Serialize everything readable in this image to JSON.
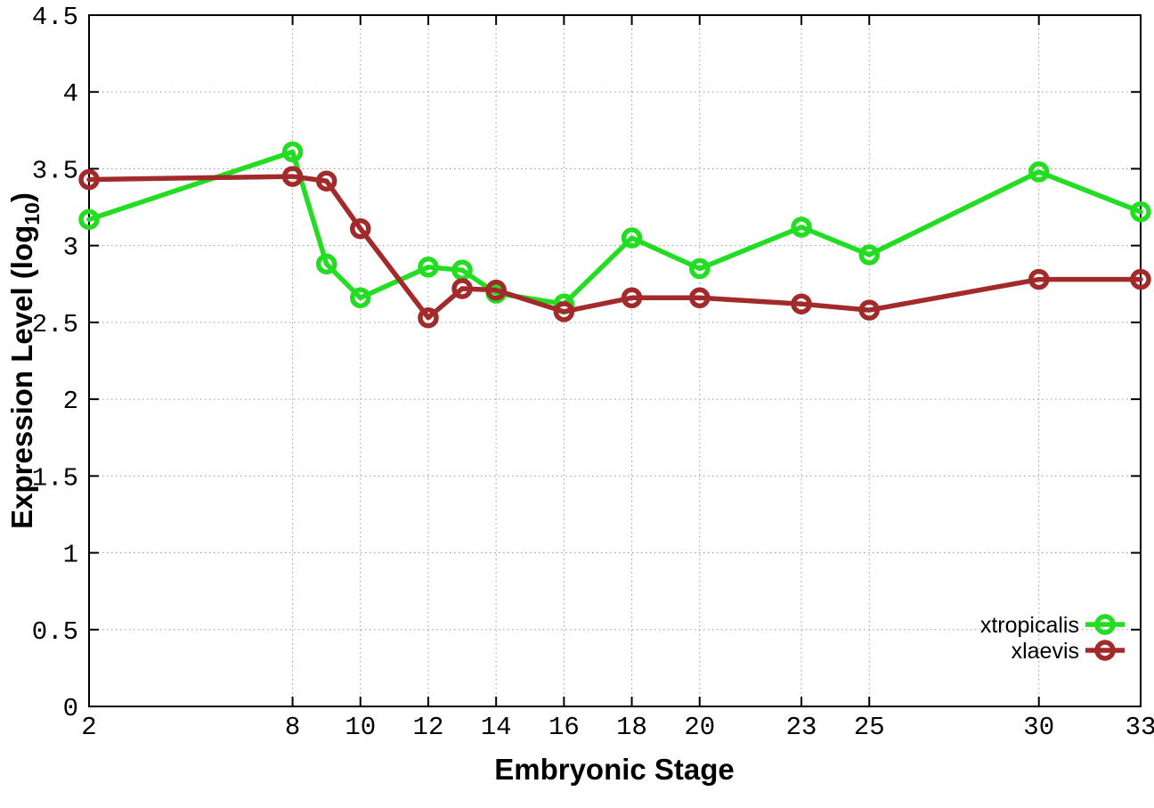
{
  "page": {
    "background": "#ffffff"
  },
  "chart_data": {
    "type": "line",
    "title": "",
    "xlabel": "Embryonic Stage",
    "ylabel": {
      "pre": "Expression Level (log",
      "sub": "10",
      "post": ")"
    },
    "xlim": [
      2,
      33
    ],
    "ylim": [
      0,
      4.5
    ],
    "xticks": [
      2,
      8,
      10,
      12,
      14,
      16,
      18,
      20,
      23,
      25,
      30,
      33
    ],
    "yticks": [
      0,
      0.5,
      1,
      1.5,
      2,
      2.5,
      3,
      3.5,
      4,
      4.5
    ],
    "grid": true,
    "legend_position": "bottom-right",
    "x": [
      2,
      8,
      9,
      10,
      12,
      13,
      14,
      16,
      18,
      20,
      23,
      25,
      30,
      33
    ],
    "series": [
      {
        "name": "xtropicalis",
        "color": "#22dd22",
        "values": [
          3.17,
          3.61,
          2.88,
          2.66,
          2.86,
          2.84,
          2.69,
          2.62,
          3.05,
          2.85,
          3.12,
          2.94,
          3.48,
          3.22
        ]
      },
      {
        "name": "xlaevis",
        "color": "#a32a2a",
        "values": [
          3.43,
          3.45,
          3.42,
          3.11,
          2.53,
          2.72,
          2.71,
          2.57,
          2.66,
          2.66,
          2.62,
          2.58,
          2.78,
          2.78
        ]
      }
    ],
    "colors": {
      "grid": "#9a9a9a",
      "axis": "#000000",
      "text": "#000000"
    }
  }
}
